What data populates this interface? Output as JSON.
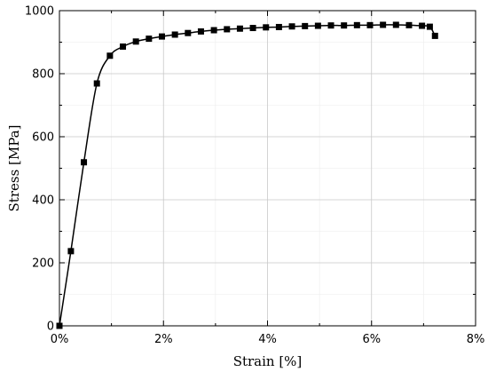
{
  "chart_data": {
    "type": "line",
    "xlabel": "Strain [%]",
    "ylabel": "Stress [MPa]",
    "xlim": [
      0,
      8
    ],
    "ylim": [
      0,
      1000
    ],
    "x_ticks": [
      0,
      2,
      4,
      6,
      8
    ],
    "x_tick_labels": [
      "0%",
      "2%",
      "4%",
      "6%",
      "8%"
    ],
    "y_ticks": [
      0,
      200,
      400,
      600,
      800,
      1000
    ],
    "y_tick_labels": [
      "0",
      "200",
      "400",
      "600",
      "800",
      "1000"
    ],
    "grid": true,
    "line_color": "#000000",
    "marker": "square",
    "series": [
      {
        "x": [
          0.0,
          0.22,
          0.47,
          0.72,
          0.97,
          1.22,
          1.47,
          1.72,
          1.97,
          2.22,
          2.47,
          2.72,
          2.97,
          3.22,
          3.47,
          3.72,
          3.97,
          4.22,
          4.47,
          4.72,
          4.97,
          5.22,
          5.47,
          5.72,
          5.97,
          6.22,
          6.47,
          6.72,
          6.97,
          7.12,
          7.22
        ],
        "y": [
          0,
          237,
          519,
          769,
          857,
          886,
          902,
          911,
          918,
          924,
          929,
          934,
          938,
          941,
          943,
          945,
          947,
          948,
          950,
          951,
          952,
          953,
          953,
          954,
          954,
          955,
          955,
          954,
          952,
          949,
          920
        ]
      }
    ]
  }
}
